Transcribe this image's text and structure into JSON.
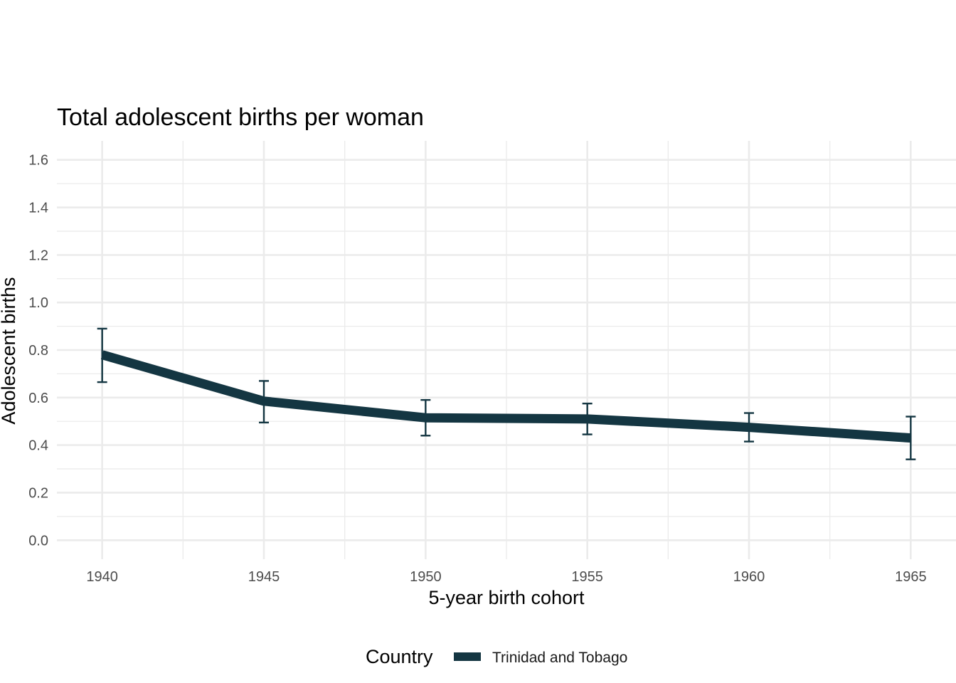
{
  "chart_data": {
    "type": "line",
    "title": "Total adolescent births per woman",
    "xlabel": "5-year birth cohort",
    "ylabel": "Adolescent births",
    "x": [
      1940,
      1945,
      1950,
      1955,
      1960,
      1965
    ],
    "x_ticks": [
      "1940",
      "1945",
      "1950",
      "1955",
      "1960",
      "1965"
    ],
    "y_ticks": [
      "0.0",
      "0.2",
      "0.4",
      "0.6",
      "0.8",
      "1.0",
      "1.2",
      "1.4",
      "1.6"
    ],
    "xlim": [
      1938.6,
      1966.4
    ],
    "ylim": [
      -0.08,
      1.68
    ],
    "grid": true,
    "legend": {
      "title": "Country",
      "position": "bottom"
    },
    "series": [
      {
        "name": "Trinidad and Tobago",
        "color": "#143642",
        "values": [
          0.78,
          0.585,
          0.515,
          0.51,
          0.475,
          0.43
        ],
        "error_lower": [
          0.665,
          0.495,
          0.44,
          0.445,
          0.415,
          0.34
        ],
        "error_upper": [
          0.89,
          0.67,
          0.59,
          0.575,
          0.535,
          0.52
        ]
      }
    ]
  }
}
